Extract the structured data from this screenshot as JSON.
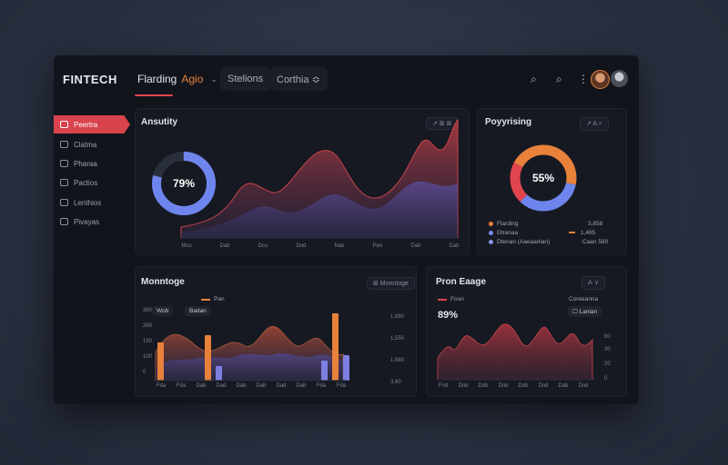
{
  "window": {
    "brand": "FINTECH",
    "tabs": [
      {
        "label": "Flarding",
        "accent": "Agio",
        "chevron": "⌄"
      },
      {
        "label": "Stelions"
      },
      {
        "label": "Corthia ≎"
      }
    ],
    "top_icons": {
      "search": "⌕",
      "search2": "⌕",
      "more": "⋮"
    }
  },
  "sidebar": {
    "items": [
      {
        "label": "Peertra",
        "active": true
      },
      {
        "label": "Clatma"
      },
      {
        "label": "Pharaa"
      },
      {
        "label": "Pactios"
      },
      {
        "label": "Lenthios"
      },
      {
        "label": "Pivayas"
      }
    ]
  },
  "analytics": {
    "title": "Ansutity",
    "tools": "↗ ⊞ ⊞",
    "donut_label": "79%",
    "donut_fraction": 0.79,
    "x_ticks": [
      "Mco",
      "Dab",
      "Dco",
      "Dod",
      "Nab",
      "Peo",
      "Dab",
      "Dab"
    ]
  },
  "portfolio": {
    "title": "Poyyrising",
    "tools": "↗ A ⌕",
    "donut_label": "55%",
    "legend": [
      {
        "label": "Flarding",
        "color": "#e8813a",
        "value": "3,858"
      },
      {
        "label": "Dtranaa",
        "color": "#7b8ef0",
        "value": "1,485"
      },
      {
        "label": "Dtenan (Aaeaanlan)",
        "color": "#8a94e8",
        "value": "Caan 580"
      }
    ]
  },
  "monitoring": {
    "title": "Monntoge",
    "tools": "⊞ Monntoge",
    "legend_label": "Pan",
    "pills": [
      "Wob",
      "Badan"
    ],
    "y_ticks": [
      "380",
      "260",
      "150",
      "100",
      "0"
    ],
    "right_values": [
      "1,880",
      "1,550",
      "1,880",
      "3,60"
    ],
    "x_ticks": [
      "Fda",
      "Fda",
      "Dab",
      "Dad",
      "Dab",
      "Dab",
      "Dad",
      "Dab",
      "Fda",
      "Fda"
    ]
  },
  "forecast": {
    "title": "Pron Eaage",
    "tools": "Ⲁ ⋎",
    "legend_label": "Foun",
    "big_value": "89%",
    "side_label": "Coreeanna",
    "side_pill": "☐ Lanlan",
    "y_ticks": [
      "50",
      "30",
      "20",
      "0"
    ],
    "x_ticks": [
      "Fnd",
      "Dob",
      "Dob",
      "Dob",
      "Dob",
      "Dod",
      "Dab",
      "Dod"
    ]
  },
  "colors": {
    "accent": "#e0454e",
    "orange": "#e8813a",
    "blue": "#7b8ef0",
    "panel": "#161922"
  }
}
